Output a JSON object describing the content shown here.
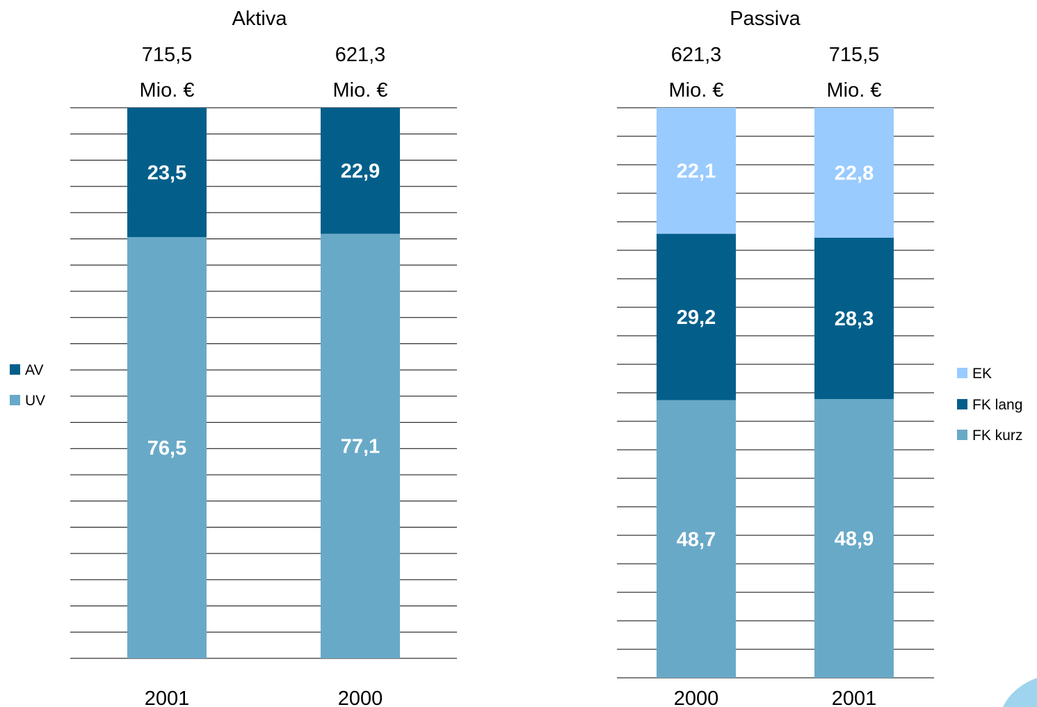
{
  "colors": {
    "UV": "#69a9c8",
    "AV": "#035f8a",
    "EK": "#99cbff",
    "FK lang": "#035f8a",
    "FK kurz": "#69a9c8",
    "grid": "#000000",
    "value_label": "#ffffff",
    "corner_ornament": "#9fd4ee"
  },
  "chart_data": [
    {
      "type": "bar",
      "stacked": true,
      "percent": true,
      "title": "Aktiva",
      "categories": [
        "2001",
        "2000"
      ],
      "totals": [
        {
          "line1": "715,5",
          "line2": "Mio. €"
        },
        {
          "line1": "621,3",
          "line2": "Mio. €"
        }
      ],
      "series": [
        {
          "name": "UV",
          "values": [
            76.5,
            77.1
          ],
          "labels": [
            "76,5",
            "77,1"
          ]
        },
        {
          "name": "AV",
          "values": [
            23.5,
            22.9
          ],
          "labels": [
            "23,5",
            "22,9"
          ]
        }
      ],
      "legend": [
        "AV",
        "UV"
      ],
      "legend_placement": "left",
      "ylim": [
        0,
        100
      ],
      "grid": true,
      "gridlines": 21
    },
    {
      "type": "bar",
      "stacked": true,
      "percent": true,
      "title": "Passiva",
      "categories": [
        "2000",
        "2001"
      ],
      "totals": [
        {
          "line1": "621,3",
          "line2": "Mio. €"
        },
        {
          "line1": "715,5",
          "line2": "Mio. €"
        }
      ],
      "series": [
        {
          "name": "FK kurz",
          "values": [
            48.7,
            48.9
          ],
          "labels": [
            "48,7",
            "48,9"
          ]
        },
        {
          "name": "FK lang",
          "values": [
            29.2,
            28.3
          ],
          "labels": [
            "29,2",
            "28,3"
          ]
        },
        {
          "name": "EK",
          "values": [
            22.1,
            22.8
          ],
          "labels": [
            "22,1",
            "22,8"
          ]
        }
      ],
      "legend": [
        "EK",
        "FK lang",
        "FK kurz"
      ],
      "legend_placement": "right",
      "ylim": [
        0,
        100
      ],
      "grid": true,
      "gridlines": 20
    }
  ]
}
